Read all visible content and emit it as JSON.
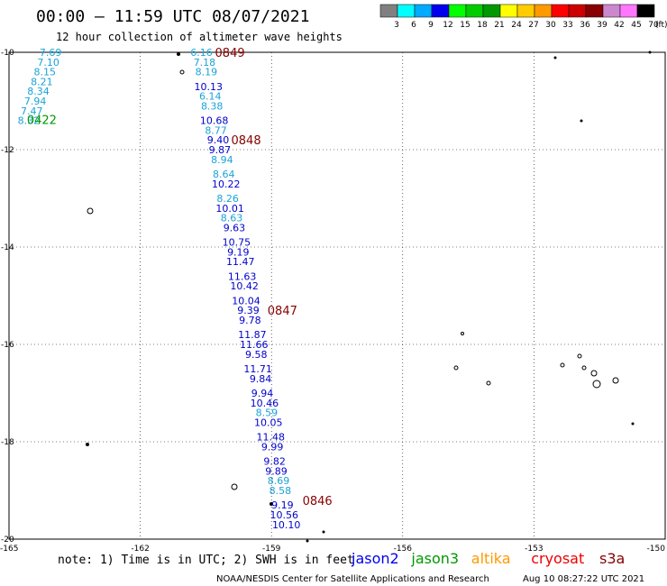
{
  "header": {
    "title": "00:00 – 11:59 UTC 08/07/2021",
    "subtitle": "12 hour collection of altimeter wave heights"
  },
  "legend": {
    "labels": [
      "3",
      "6",
      "9",
      "12",
      "15",
      "18",
      "21",
      "24",
      "27",
      "30",
      "33",
      "36",
      "39",
      "42",
      "45",
      "70"
    ],
    "unit": "(ft)",
    "colors": [
      "#808080",
      "#00ffff",
      "#00aaff",
      "#0000ee",
      "#00ff00",
      "#00cc00",
      "#009900",
      "#ffff00",
      "#ffcc00",
      "#ff9900",
      "#ff0000",
      "#cc0000",
      "#880000",
      "#cc88cc",
      "#ff77ff",
      "#000000"
    ]
  },
  "footer": {
    "note": "note: 1) Time is in UTC; 2) SWH is in feet",
    "satellites": [
      {
        "name": "jason2",
        "color": "#0000ee"
      },
      {
        "name": "jason3",
        "color": "#009900"
      },
      {
        "name": "altika",
        "color": "#ff9900"
      },
      {
        "name": "cryosat",
        "color": "#ee0000"
      },
      {
        "name": "s3a",
        "color": "#880000"
      }
    ],
    "credit": "NOAA/NESDIS Center for Satellite Applications and Research",
    "timestamp": "Aug 10 08:27:22 UTC 2021"
  },
  "chart_data": {
    "type": "scatter",
    "xlim": [
      -165,
      -150
    ],
    "ylim": [
      -20,
      -10
    ],
    "xticks": [
      "-165",
      "-162",
      "-159",
      "-156",
      "-153",
      "-150"
    ],
    "yticks": [
      "-10",
      "-12",
      "-14",
      "-16",
      "-18",
      "-20"
    ],
    "grid": true,
    "series": [
      {
        "name": "jason3",
        "color": "#009900",
        "pass_labels": [
          {
            "text": "0422",
            "lon": -164.25,
            "lat": -11.38
          }
        ],
        "points": [
          {
            "lon": -164.05,
            "lat": -10.0,
            "v": "7.69"
          },
          {
            "lon": -164.1,
            "lat": -10.2,
            "v": "7.10"
          },
          {
            "lon": -164.18,
            "lat": -10.4,
            "v": "8.15"
          },
          {
            "lon": -164.25,
            "lat": -10.6,
            "v": "8.21"
          },
          {
            "lon": -164.33,
            "lat": -10.8,
            "v": "8.34"
          },
          {
            "lon": -164.4,
            "lat": -11.0,
            "v": "7.94"
          },
          {
            "lon": -164.48,
            "lat": -11.2,
            "v": "7.47"
          },
          {
            "lon": -164.55,
            "lat": -11.4,
            "v": "8.32"
          }
        ]
      },
      {
        "name": "s3a",
        "color": "#880000",
        "pass_labels": [
          {
            "text": "0849",
            "lon": -159.95,
            "lat": -10.0
          },
          {
            "text": "0848",
            "lon": -159.58,
            "lat": -11.8
          },
          {
            "text": "0847",
            "lon": -158.75,
            "lat": -15.3
          },
          {
            "text": "0846",
            "lon": -157.95,
            "lat": -19.2
          }
        ],
        "points": [
          {
            "lon": -160.6,
            "lat": -10.0,
            "v": "6.16"
          },
          {
            "lon": -160.53,
            "lat": -10.2,
            "v": "7.18"
          },
          {
            "lon": -160.49,
            "lat": -10.4,
            "v": "8.19"
          },
          {
            "lon": -160.44,
            "lat": -10.7,
            "v": "10.13"
          },
          {
            "lon": -160.4,
            "lat": -10.9,
            "v": "6.14"
          },
          {
            "lon": -160.36,
            "lat": -11.1,
            "v": "8.38"
          },
          {
            "lon": -160.31,
            "lat": -11.4,
            "v": "10.68"
          },
          {
            "lon": -160.27,
            "lat": -11.6,
            "v": "8.77"
          },
          {
            "lon": -160.22,
            "lat": -11.8,
            "v": "9.40"
          },
          {
            "lon": -160.18,
            "lat": -12.0,
            "v": "9.87"
          },
          {
            "lon": -160.13,
            "lat": -12.2,
            "v": "8.94"
          },
          {
            "lon": -160.09,
            "lat": -12.5,
            "v": "8.64"
          },
          {
            "lon": -160.04,
            "lat": -12.7,
            "v": "10.22"
          },
          {
            "lon": -160.0,
            "lat": -13.0,
            "v": "8.26"
          },
          {
            "lon": -159.95,
            "lat": -13.2,
            "v": "10.01"
          },
          {
            "lon": -159.91,
            "lat": -13.4,
            "v": "8.63"
          },
          {
            "lon": -159.85,
            "lat": -13.6,
            "v": "9.63"
          },
          {
            "lon": -159.8,
            "lat": -13.9,
            "v": "10.75"
          },
          {
            "lon": -159.76,
            "lat": -14.1,
            "v": "9.19"
          },
          {
            "lon": -159.71,
            "lat": -14.3,
            "v": "11.47"
          },
          {
            "lon": -159.67,
            "lat": -14.6,
            "v": "11.63"
          },
          {
            "lon": -159.62,
            "lat": -14.8,
            "v": "10.42"
          },
          {
            "lon": -159.58,
            "lat": -15.1,
            "v": "10.04"
          },
          {
            "lon": -159.53,
            "lat": -15.3,
            "v": "9.39"
          },
          {
            "lon": -159.49,
            "lat": -15.5,
            "v": "9.78"
          },
          {
            "lon": -159.44,
            "lat": -15.8,
            "v": "11.87"
          },
          {
            "lon": -159.4,
            "lat": -16.0,
            "v": "11.66"
          },
          {
            "lon": -159.35,
            "lat": -16.2,
            "v": "9.58"
          },
          {
            "lon": -159.31,
            "lat": -16.5,
            "v": "11.71"
          },
          {
            "lon": -159.25,
            "lat": -16.7,
            "v": "9.84"
          },
          {
            "lon": -159.21,
            "lat": -17.0,
            "v": "9.94"
          },
          {
            "lon": -159.16,
            "lat": -17.2,
            "v": "10.46"
          },
          {
            "lon": -159.11,
            "lat": -17.4,
            "v": "8.59"
          },
          {
            "lon": -159.07,
            "lat": -17.6,
            "v": "10.05"
          },
          {
            "lon": -159.02,
            "lat": -17.9,
            "v": "11.48"
          },
          {
            "lon": -158.98,
            "lat": -18.1,
            "v": "9.99"
          },
          {
            "lon": -158.93,
            "lat": -18.4,
            "v": "9.82"
          },
          {
            "lon": -158.89,
            "lat": -18.6,
            "v": "9.89"
          },
          {
            "lon": -158.84,
            "lat": -18.8,
            "v": "8.69"
          },
          {
            "lon": -158.8,
            "lat": -19.0,
            "v": "8.58"
          },
          {
            "lon": -158.75,
            "lat": -19.3,
            "v": "9.19"
          },
          {
            "lon": -158.71,
            "lat": -19.5,
            "v": "10.56"
          },
          {
            "lon": -158.66,
            "lat": -19.7,
            "v": "10.10"
          }
        ]
      }
    ]
  }
}
